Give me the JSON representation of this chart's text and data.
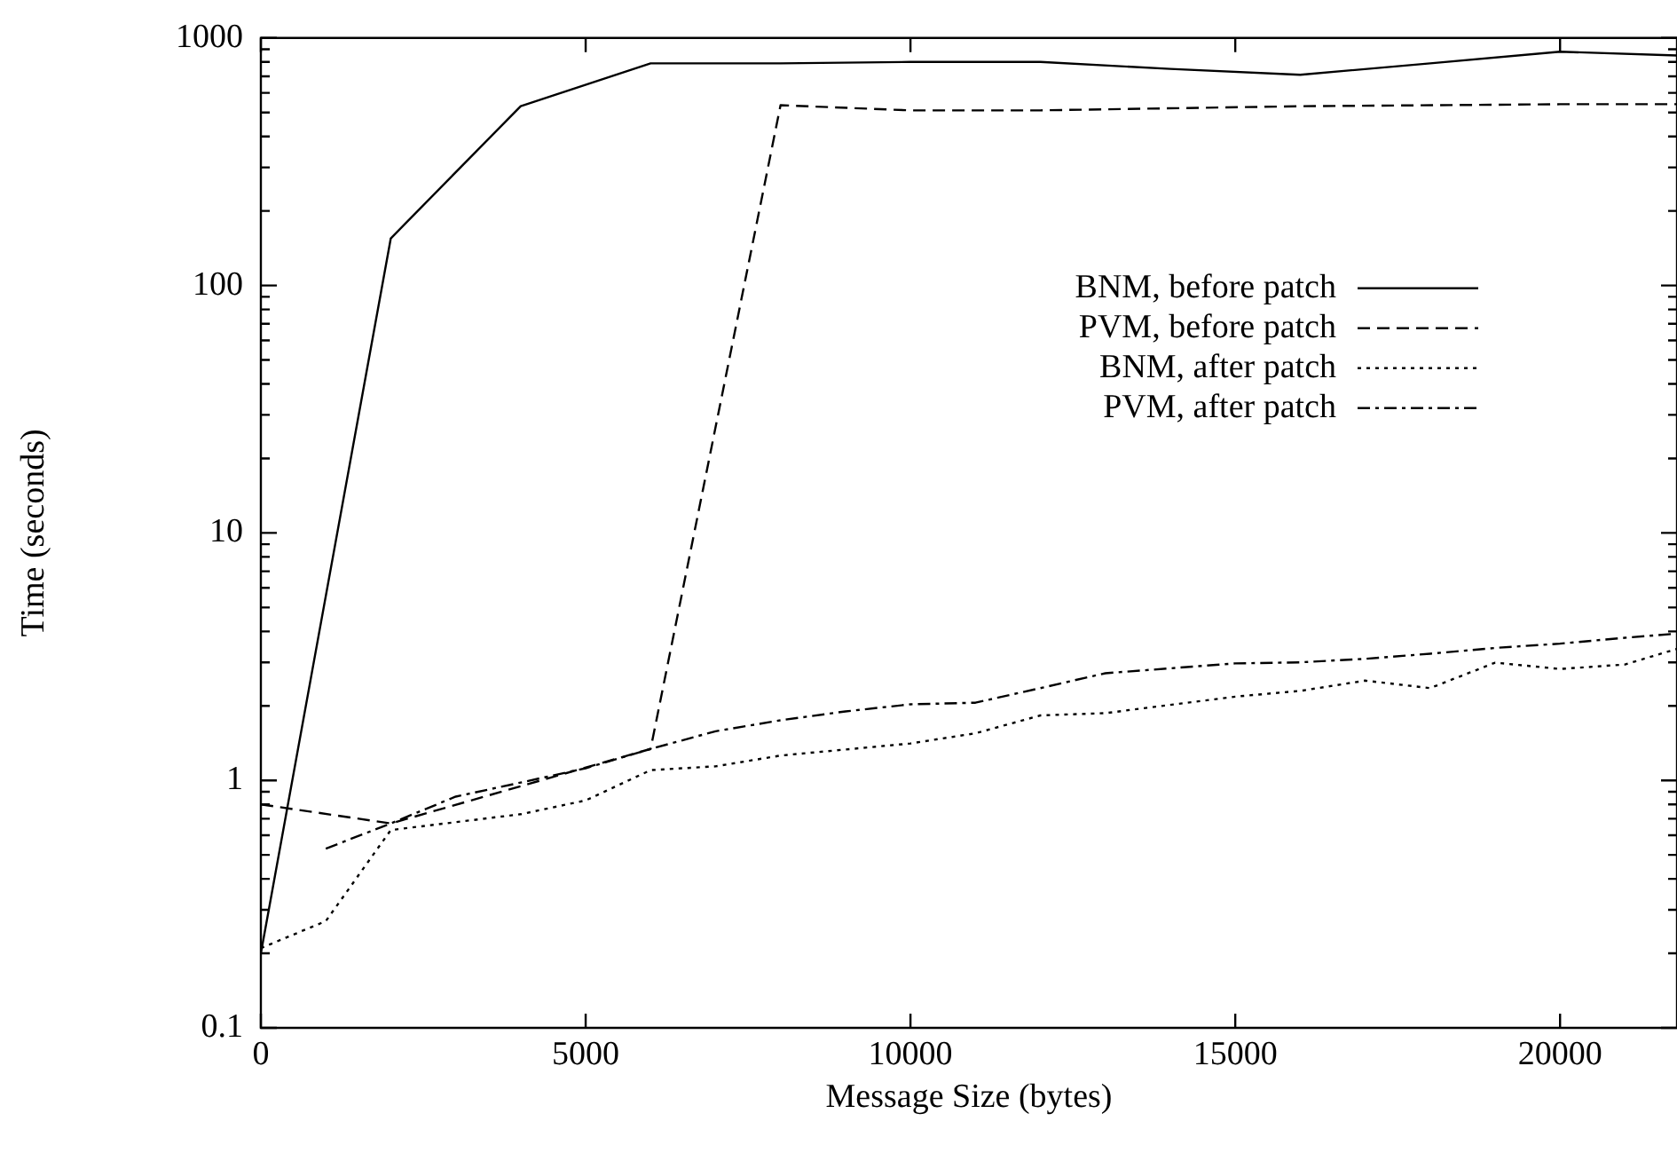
{
  "chart_data": {
    "type": "line",
    "xlabel": "Message Size (bytes)",
    "ylabel": "Time (seconds)",
    "log": "y",
    "legend": "top right",
    "grid": false,
    "marker": "none",
    "xlim": [
      0,
      21800
    ],
    "xticks": [
      0,
      5000,
      10000,
      15000,
      20000
    ],
    "ylim": [
      0.1,
      1000
    ],
    "yticks": [
      {
        "value": 0.1,
        "label": "0.1"
      },
      {
        "value": 0.2,
        "label": null
      },
      {
        "value": 0.3,
        "label": null
      },
      {
        "value": 0.4,
        "label": null
      },
      {
        "value": 0.5,
        "label": null
      },
      {
        "value": 0.6,
        "label": null
      },
      {
        "value": 0.7,
        "label": null
      },
      {
        "value": 0.8,
        "label": null
      },
      {
        "value": 0.9,
        "label": null
      },
      1,
      {
        "value": 2,
        "label": null
      },
      {
        "value": 3,
        "label": null
      },
      {
        "value": 4,
        "label": null
      },
      {
        "value": 5,
        "label": null
      },
      {
        "value": 6,
        "label": null
      },
      {
        "value": 7,
        "label": null
      },
      {
        "value": 8,
        "label": null
      },
      {
        "value": 9,
        "label": null
      },
      10,
      {
        "value": 20,
        "label": null
      },
      {
        "value": 30,
        "label": null
      },
      {
        "value": 40,
        "label": null
      },
      {
        "value": 50,
        "label": null
      },
      {
        "value": 60,
        "label": null
      },
      {
        "value": 70,
        "label": null
      },
      {
        "value": 80,
        "label": null
      },
      {
        "value": 90,
        "label": null
      },
      100,
      {
        "value": 200,
        "label": null
      },
      {
        "value": 300,
        "label": null
      },
      {
        "value": 400,
        "label": null
      },
      {
        "value": 500,
        "label": null
      },
      {
        "value": 600,
        "label": null
      },
      {
        "value": 700,
        "label": null
      },
      {
        "value": 800,
        "label": null
      },
      {
        "value": 900,
        "label": null
      },
      1000
    ],
    "series": [
      {
        "name": "BNM, before patch",
        "color": "#000000",
        "line_style": "solid",
        "x": [
          0,
          2000,
          4000,
          6000,
          8000,
          10000,
          12000,
          14000,
          16000,
          18000,
          20000,
          21800
        ],
        "values": [
          0.2,
          155,
          530,
          790,
          790,
          800,
          800,
          750,
          710,
          790,
          880,
          850
        ]
      },
      {
        "name": "PVM, before patch",
        "color": "#000000",
        "line_style": "dashed",
        "x": [
          0,
          2000,
          6000,
          8000,
          10000,
          12000,
          16000,
          20000,
          21800
        ],
        "values": [
          0.8,
          0.67,
          1.34,
          535,
          510,
          510,
          530,
          540,
          540
        ]
      },
      {
        "name": "BNM, after patch",
        "color": "#000000",
        "line_style": "dotted",
        "x": [
          0,
          1000,
          2000,
          4000,
          5000,
          6000,
          7000,
          8000,
          10000,
          11000,
          12000,
          13000,
          15000,
          16000,
          17000,
          18000,
          19000,
          20000,
          21000,
          21800
        ],
        "values": [
          0.21,
          0.27,
          0.63,
          0.73,
          0.83,
          1.1,
          1.14,
          1.26,
          1.41,
          1.55,
          1.83,
          1.87,
          2.18,
          2.3,
          2.53,
          2.36,
          2.99,
          2.82,
          2.94,
          3.4
        ]
      },
      {
        "name": "PVM, after patch",
        "color": "#000000",
        "line_style": "dashdot",
        "x": [
          1000,
          2000,
          3000,
          4000,
          5000,
          6000,
          7000,
          8000,
          9000,
          10000,
          11000,
          12000,
          13000,
          15000,
          16000,
          17000,
          18000,
          19000,
          20000,
          21000,
          21800
        ],
        "values": [
          0.53,
          0.67,
          0.86,
          0.98,
          1.12,
          1.34,
          1.58,
          1.75,
          1.9,
          2.03,
          2.06,
          2.36,
          2.71,
          2.97,
          3.0,
          3.1,
          3.25,
          3.43,
          3.57,
          3.77,
          3.92
        ]
      }
    ]
  }
}
